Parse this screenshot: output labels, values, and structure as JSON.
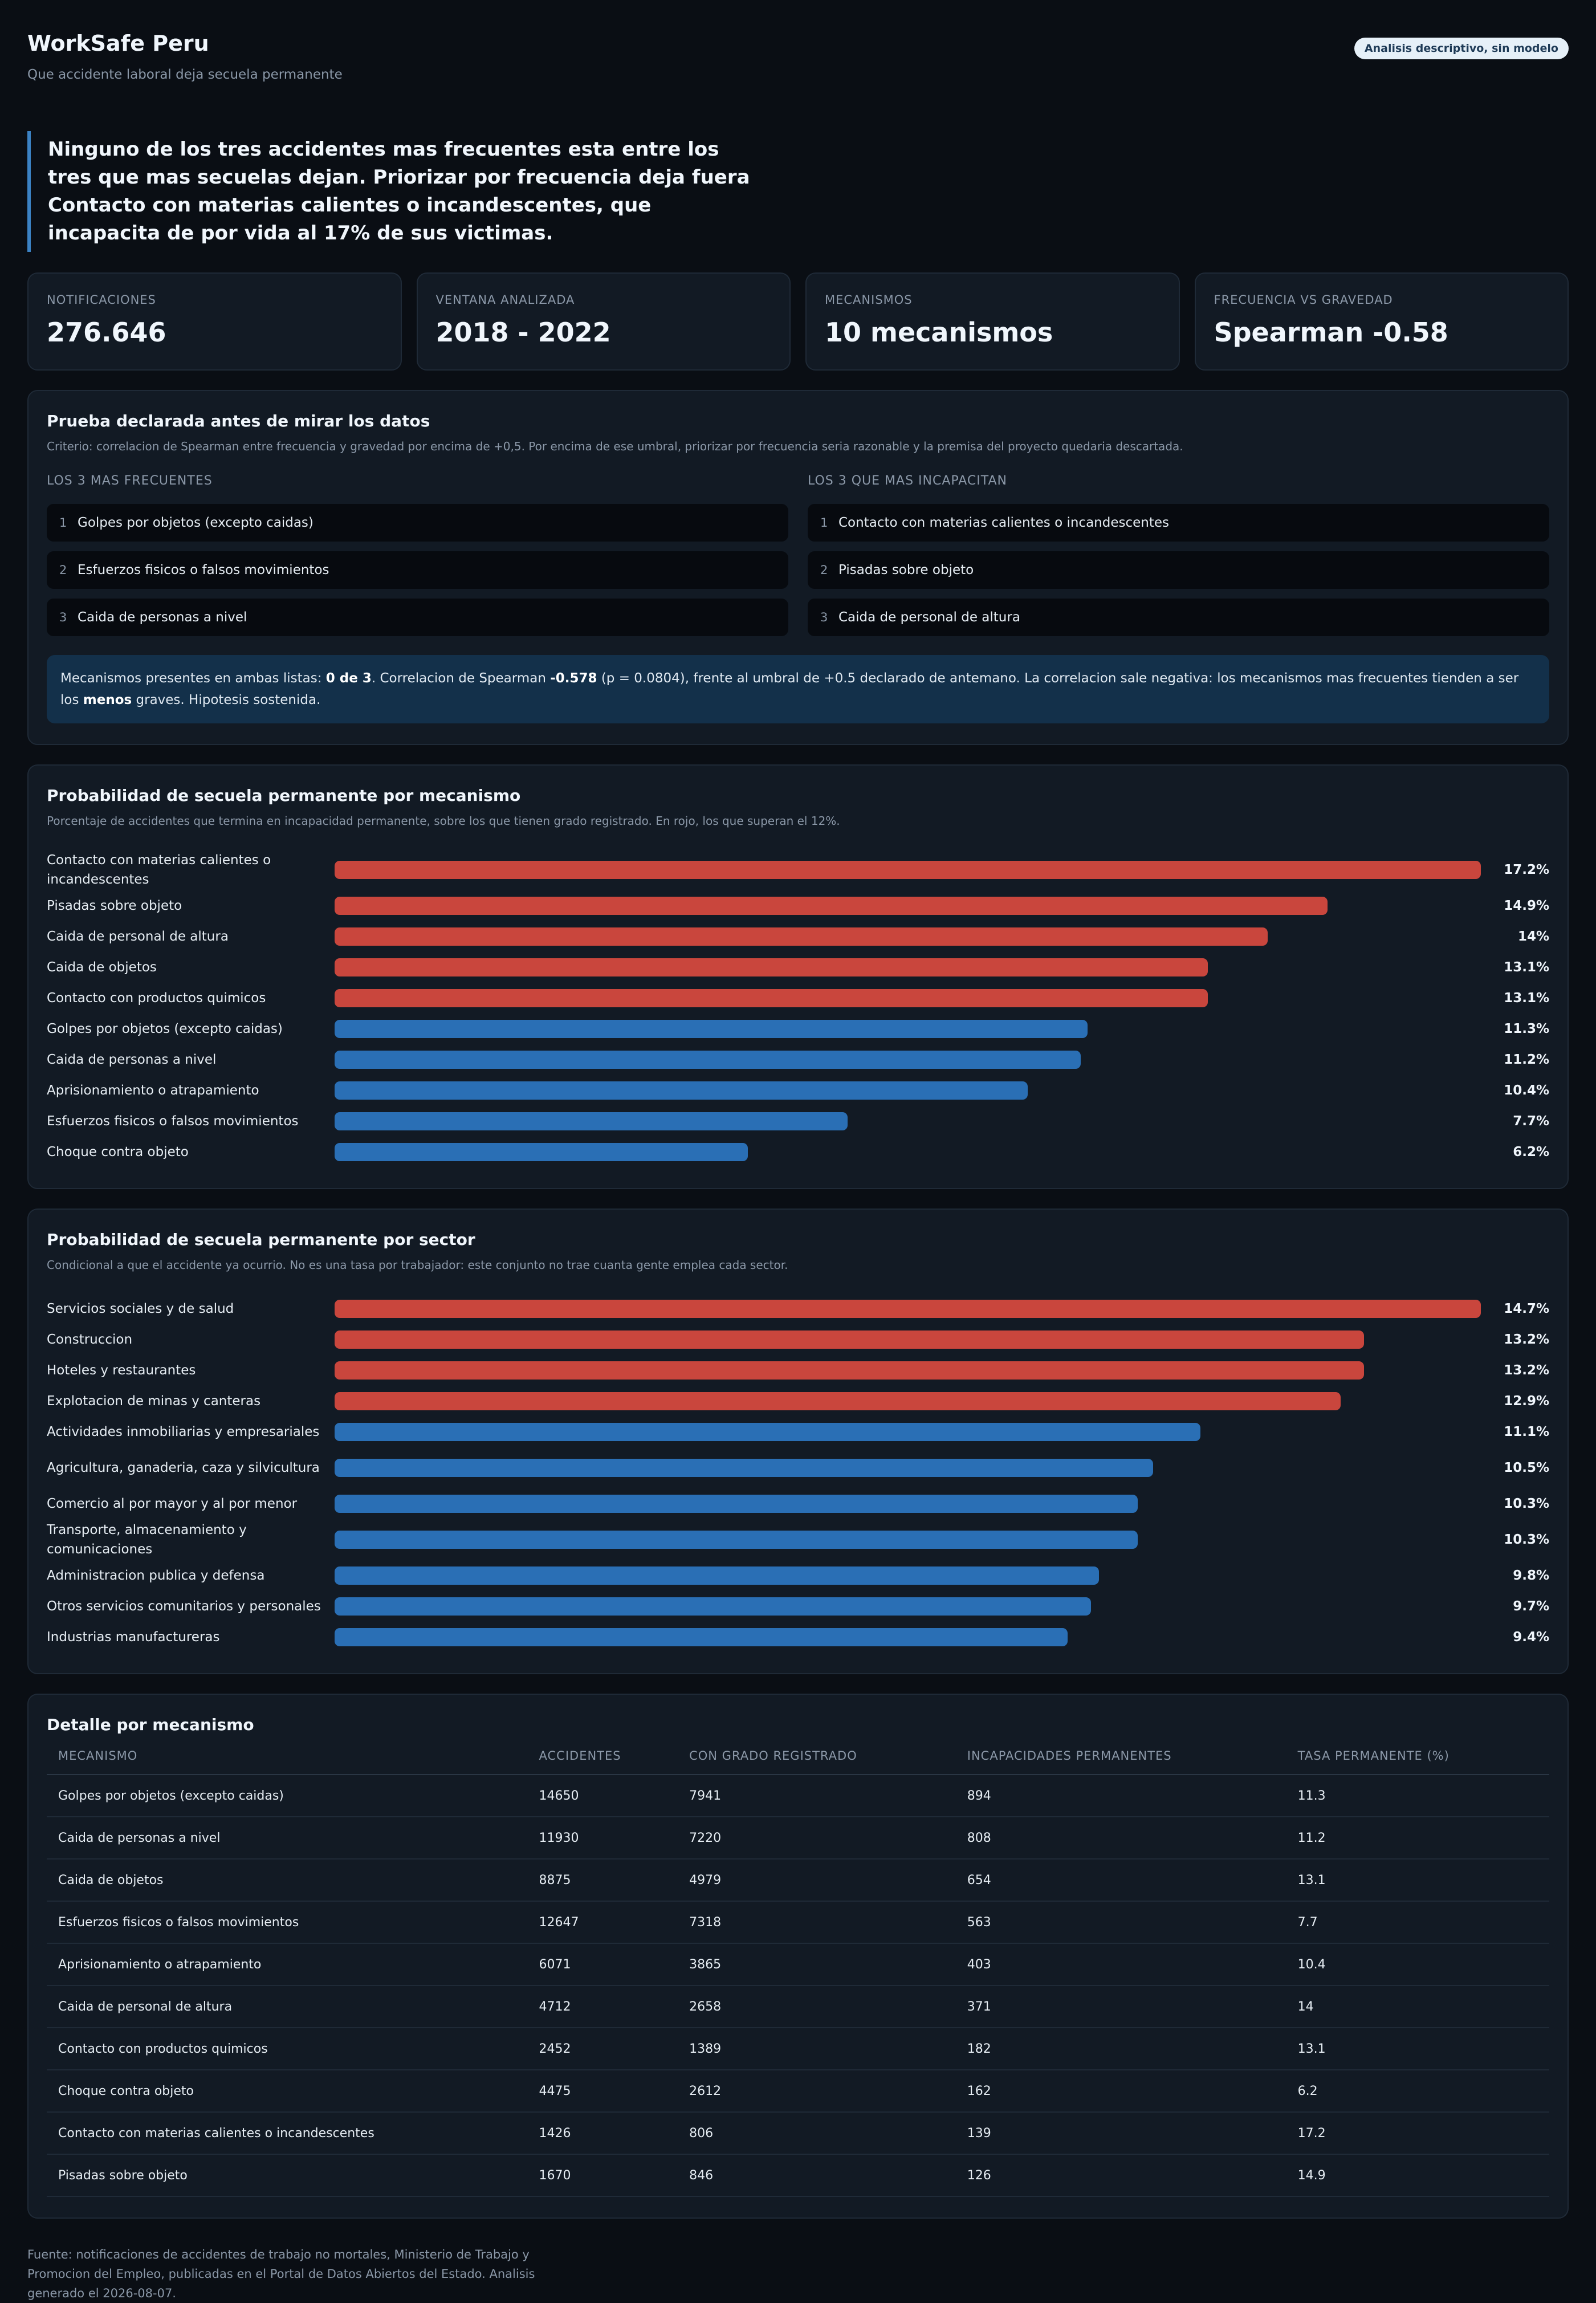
{
  "header": {
    "title": "WorkSafe Peru",
    "subtitle": "Que accidente laboral deja secuela permanente",
    "badge": "Analisis descriptivo, sin modelo"
  },
  "lead": "Ninguno de los tres accidentes mas frecuentes esta entre los tres que mas secuelas dejan. Priorizar por frecuencia deja fuera Contacto con materias calientes o incandescentes, que incapacita de por vida al 17% de sus victimas.",
  "kpis": [
    {
      "label": "Notificaciones",
      "value": "276.646"
    },
    {
      "label": "Ventana analizada",
      "value": "2018 - 2022"
    },
    {
      "label": "Mecanismos",
      "value": "10 mecanismos"
    },
    {
      "label": "Frecuencia vs gravedad",
      "value": "Spearman -0.58"
    }
  ],
  "test": {
    "title": "Prueba declarada antes de mirar los datos",
    "subtitle": "Criterio: correlacion de Spearman entre frecuencia y gravedad por encima de +0,5. Por encima de ese umbral, priorizar por frecuencia seria razonable y la premisa del proyecto quedaria descartada.",
    "frequent_label": "Los 3 mas frecuentes",
    "frequent": [
      {
        "rank": "1",
        "name": "Golpes por objetos (excepto caidas)"
      },
      {
        "rank": "2",
        "name": "Esfuerzos fisicos o falsos movimientos"
      },
      {
        "rank": "3",
        "name": "Caida de personas a nivel"
      }
    ],
    "severe_label": "Los 3 que mas incapacitan",
    "severe": [
      {
        "rank": "1",
        "name": "Contacto con materias calientes o incandescentes"
      },
      {
        "rank": "2",
        "name": "Pisadas sobre objeto"
      },
      {
        "rank": "3",
        "name": "Caida de personal de altura"
      }
    ],
    "verdict": {
      "t1": "Mecanismos presentes en ambas listas: ",
      "b1": "0 de 3",
      "t2": ". Correlacion de Spearman ",
      "b2": "-0.578",
      "t3": " (p = 0.0804), frente al umbral de +0.5 declarado de antemano. La correlacion sale negativa: los mecanismos mas frecuentes tienden a ser los ",
      "b3": "menos",
      "t4": " graves. Hipotesis sostenida."
    }
  },
  "mech_chart": {
    "title": "Probabilidad de secuela permanente por mecanismo",
    "subtitle": "Porcentaje de accidentes que termina en incapacidad permanente, sobre los que tienen grado registrado. En rojo, los que superan el 12%."
  },
  "sector_chart": {
    "title": "Probabilidad de secuela permanente por sector",
    "subtitle": "Condicional a que el accidente ya ocurrio. No es una tasa por trabajador: este conjunto no trae cuanta gente emplea cada sector."
  },
  "chart_data": [
    {
      "type": "bar",
      "orientation": "horizontal",
      "threshold": 12,
      "colors": {
        "above_threshold": "#c9463d",
        "below_threshold": "#2a6fb5"
      },
      "categories": [
        "Contacto con materias calientes o incandescentes",
        "Pisadas sobre objeto",
        "Caida de personal de altura",
        "Caida de objetos",
        "Contacto con productos quimicos",
        "Golpes por objetos (excepto caidas)",
        "Caida de personas a nivel",
        "Aprisionamiento o atrapamiento",
        "Esfuerzos fisicos o falsos movimientos",
        "Choque contra objeto"
      ],
      "values": [
        17.2,
        14.9,
        14,
        13.1,
        13.1,
        11.3,
        11.2,
        10.4,
        7.7,
        6.2
      ],
      "labels": [
        "17.2%",
        "14.9%",
        "14%",
        "13.1%",
        "13.1%",
        "11.3%",
        "11.2%",
        "10.4%",
        "7.7%",
        "6.2%"
      ]
    },
    {
      "type": "bar",
      "orientation": "horizontal",
      "threshold": 12,
      "colors": {
        "above_threshold": "#c9463d",
        "below_threshold": "#2a6fb5"
      },
      "categories": [
        "Servicios sociales y de salud",
        "Construccion",
        "Hoteles y restaurantes",
        "Explotacion de minas y canteras",
        "Actividades inmobiliarias y empresariales",
        "Agricultura, ganaderia, caza y silvicultura",
        "Comercio al por mayor y al por menor",
        "Transporte, almacenamiento y comunicaciones",
        "Administracion publica y defensa",
        "Otros servicios comunitarios y personales",
        "Industrias manufactureras"
      ],
      "values": [
        14.7,
        13.2,
        13.2,
        12.9,
        11.1,
        10.5,
        10.3,
        10.3,
        9.8,
        9.7,
        9.4
      ],
      "labels": [
        "14.7%",
        "13.2%",
        "13.2%",
        "12.9%",
        "11.1%",
        "10.5%",
        "10.3%",
        "10.3%",
        "9.8%",
        "9.7%",
        "9.4%"
      ]
    }
  ],
  "detail": {
    "title": "Detalle por mecanismo",
    "columns": [
      "Mecanismo",
      "Accidentes",
      "Con grado registrado",
      "Incapacidades permanentes",
      "Tasa permanente (%)"
    ],
    "rows": [
      [
        "Golpes por objetos (excepto caidas)",
        "14650",
        "7941",
        "894",
        "11.3"
      ],
      [
        "Caida de personas a nivel",
        "11930",
        "7220",
        "808",
        "11.2"
      ],
      [
        "Caida de objetos",
        "8875",
        "4979",
        "654",
        "13.1"
      ],
      [
        "Esfuerzos fisicos o falsos movimientos",
        "12647",
        "7318",
        "563",
        "7.7"
      ],
      [
        "Aprisionamiento o atrapamiento",
        "6071",
        "3865",
        "403",
        "10.4"
      ],
      [
        "Caida de personal de altura",
        "4712",
        "2658",
        "371",
        "14"
      ],
      [
        "Contacto con productos quimicos",
        "2452",
        "1389",
        "182",
        "13.1"
      ],
      [
        "Choque contra objeto",
        "4475",
        "2612",
        "162",
        "6.2"
      ],
      [
        "Contacto con materias calientes o incandescentes",
        "1426",
        "806",
        "139",
        "17.2"
      ],
      [
        "Pisadas sobre objeto",
        "1670",
        "846",
        "126",
        "14.9"
      ]
    ]
  },
  "footer": "Fuente: notificaciones de accidentes de trabajo no mortales, Ministerio de Trabajo y Promocion del Empleo, publicadas en el Portal de Datos Abiertos del Estado. Analisis generado el 2026-08-07."
}
